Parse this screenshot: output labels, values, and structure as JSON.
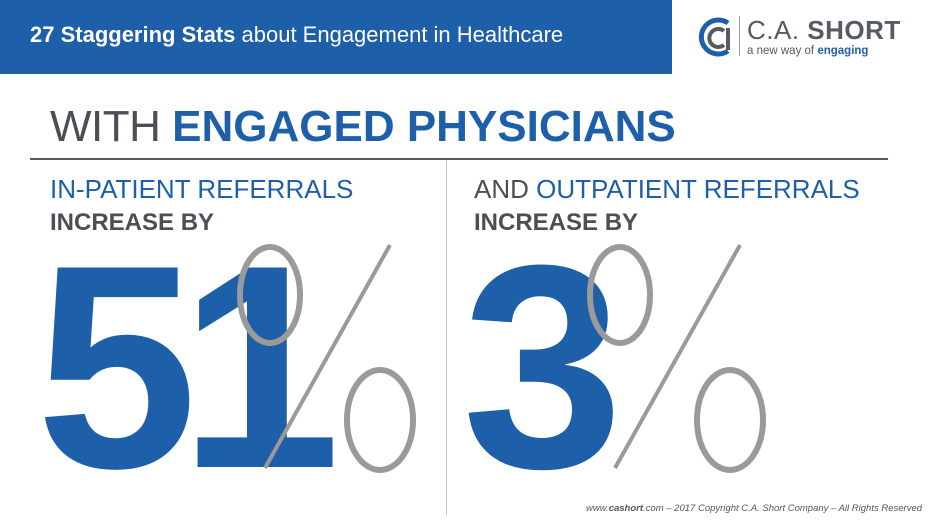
{
  "banner": {
    "title_bold": "27 Staggering Stats",
    "title_rest": " about Engagement in Healthcare"
  },
  "logo": {
    "icon": "ca-monogram-icon",
    "name_light": "C.A. ",
    "name_bold": "SHORT",
    "tagline_prefix": "a new way of ",
    "tagline_bold": "engaging"
  },
  "heading": {
    "light": "WITH ",
    "bold": "ENGAGED PHYSICIANS"
  },
  "left_stat": {
    "label_line1": "IN-PATIENT REFERRALS",
    "label_line2": "INCREASE BY",
    "number": "51",
    "percent_icon": "percent-sign-icon"
  },
  "right_stat": {
    "label_prefix": "AND ",
    "label_line1": "OUTPATIENT REFERRALS",
    "label_line2": "INCREASE BY",
    "number": "3",
    "percent_icon": "percent-sign-icon"
  },
  "footer": {
    "site_prefix": "www.",
    "site_bold": "cashort",
    "site_suffix": ".com",
    "copyright": " – 2017 Copyright C.A. Short Company – All Rights Reserved"
  },
  "colors": {
    "brand_blue": "#1d5fa8",
    "dark_grey": "#4a4f55",
    "percent_grey": "#9a9a9a"
  }
}
